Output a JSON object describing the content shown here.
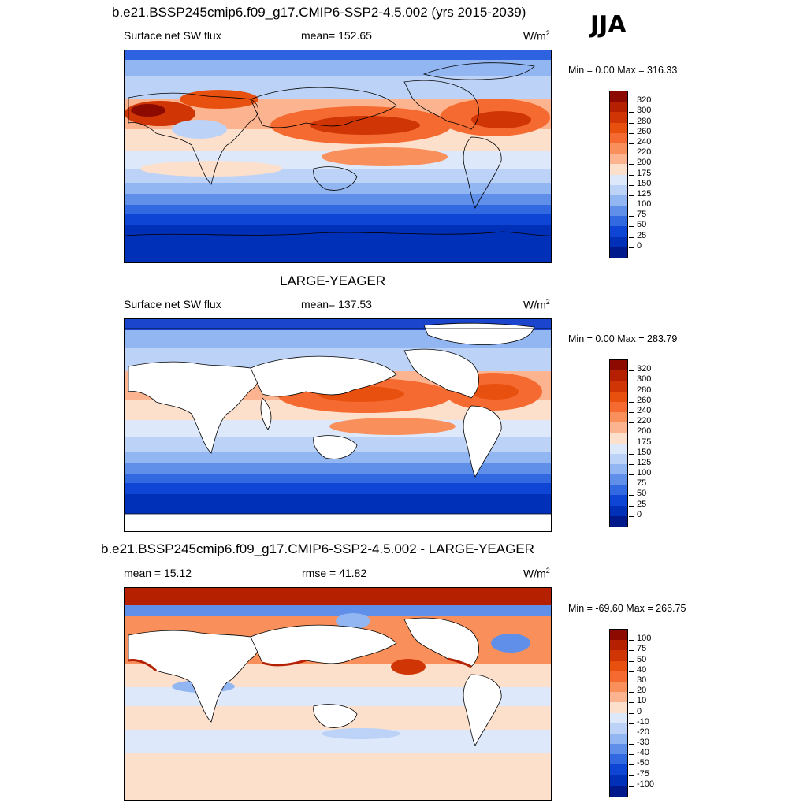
{
  "season": "JJA",
  "panels": [
    {
      "title": "b.e21.BSSP245cmip6.f09_g17.CMIP6-SSP2-4.5.002 (yrs 2015-2039)",
      "left_label": "Surface net SW flux",
      "center_label": "mean= 152.65",
      "units": "W/m",
      "units_sup": "2",
      "minmax": "Min =   0.00 Max = 316.33",
      "land_masked": false
    },
    {
      "title": "LARGE-YEAGER",
      "left_label": "Surface net SW flux",
      "center_label": "mean= 137.53",
      "units": "W/m",
      "units_sup": "2",
      "minmax": "Min =   0.00 Max = 283.79",
      "land_masked": true
    },
    {
      "title": "b.e21.BSSP245cmip6.f09_g17.CMIP6-SSP2-4.5.002 - LARGE-YEAGER",
      "left_label": "mean =  15.12",
      "center_label": "rmse =  41.82",
      "units": "W/m",
      "units_sup": "2",
      "minmax": "Min = -69.60 Max = 266.75",
      "land_masked": true
    }
  ],
  "colorbars": [
    {
      "labels": [
        "320",
        "300",
        "280",
        "260",
        "240",
        "220",
        "200",
        "175",
        "150",
        "125",
        "100",
        "75",
        "50",
        "25",
        "0"
      ],
      "colors": [
        "#8c0a00",
        "#b42000",
        "#cf3505",
        "#e8500f",
        "#f56a30",
        "#f9905c",
        "#fbb48f",
        "#fde0cc",
        "#dde9fb",
        "#bcd3f7",
        "#92b6f2",
        "#5f8fe9",
        "#3268e0",
        "#0f45d4",
        "#0030b8",
        "#001a8c"
      ]
    },
    {
      "labels": [
        "320",
        "300",
        "280",
        "260",
        "240",
        "220",
        "200",
        "175",
        "150",
        "125",
        "100",
        "75",
        "50",
        "25",
        "0"
      ],
      "colors": [
        "#8c0a00",
        "#b42000",
        "#cf3505",
        "#e8500f",
        "#f56a30",
        "#f9905c",
        "#fbb48f",
        "#fde0cc",
        "#dde9fb",
        "#bcd3f7",
        "#92b6f2",
        "#5f8fe9",
        "#3268e0",
        "#0f45d4",
        "#0030b8",
        "#001a8c"
      ]
    },
    {
      "labels": [
        "100",
        "75",
        "50",
        "40",
        "30",
        "20",
        "10",
        "0",
        "-10",
        "-20",
        "-30",
        "-40",
        "-50",
        "-75",
        "-100"
      ],
      "colors": [
        "#8c0a00",
        "#b42000",
        "#cf3505",
        "#e8500f",
        "#f56a30",
        "#f9905c",
        "#fbb48f",
        "#fde0cc",
        "#dde9fb",
        "#bcd3f7",
        "#92b6f2",
        "#5f8fe9",
        "#3268e0",
        "#0f45d4",
        "#0030b8",
        "#001a8c"
      ]
    }
  ],
  "chart_data": [
    {
      "type": "heatmap",
      "title": "b.e21.BSSP245cmip6.f09_g17.CMIP6-SSP2-4.5.002 (yrs 2015-2039)",
      "variable": "Surface net SW flux",
      "units": "W/m2",
      "mean": 152.65,
      "min": 0.0,
      "max": 316.33,
      "levels": [
        0,
        25,
        50,
        75,
        100,
        125,
        150,
        175,
        200,
        220,
        240,
        260,
        280,
        300,
        320
      ],
      "zonal_profile_approx": {
        "lat": [
          80,
          60,
          40,
          25,
          10,
          0,
          -10,
          -20,
          -35,
          -50,
          -70
        ],
        "value": [
          60,
          160,
          250,
          270,
          210,
          190,
          200,
          180,
          120,
          60,
          10
        ]
      }
    },
    {
      "type": "heatmap",
      "title": "LARGE-YEAGER",
      "variable": "Surface net SW flux",
      "units": "W/m2",
      "mean": 137.53,
      "min": 0.0,
      "max": 283.79,
      "levels": [
        0,
        25,
        50,
        75,
        100,
        125,
        150,
        175,
        200,
        220,
        240,
        260,
        280,
        300,
        320
      ],
      "zonal_profile_approx": {
        "lat": [
          80,
          60,
          40,
          25,
          10,
          0,
          -10,
          -20,
          -35,
          -50,
          -70
        ],
        "value": [
          40,
          140,
          230,
          250,
          210,
          195,
          205,
          180,
          110,
          50,
          5
        ]
      }
    },
    {
      "type": "heatmap",
      "title": "b.e21.BSSP245cmip6.f09_g17.CMIP6-SSP2-4.5.002 - LARGE-YEAGER",
      "units": "W/m2",
      "mean": 15.12,
      "rmse": 41.82,
      "min": -69.6,
      "max": 266.75,
      "levels": [
        -100,
        -75,
        -50,
        -40,
        -30,
        -20,
        -10,
        0,
        10,
        20,
        30,
        40,
        50,
        75,
        100
      ]
    }
  ]
}
